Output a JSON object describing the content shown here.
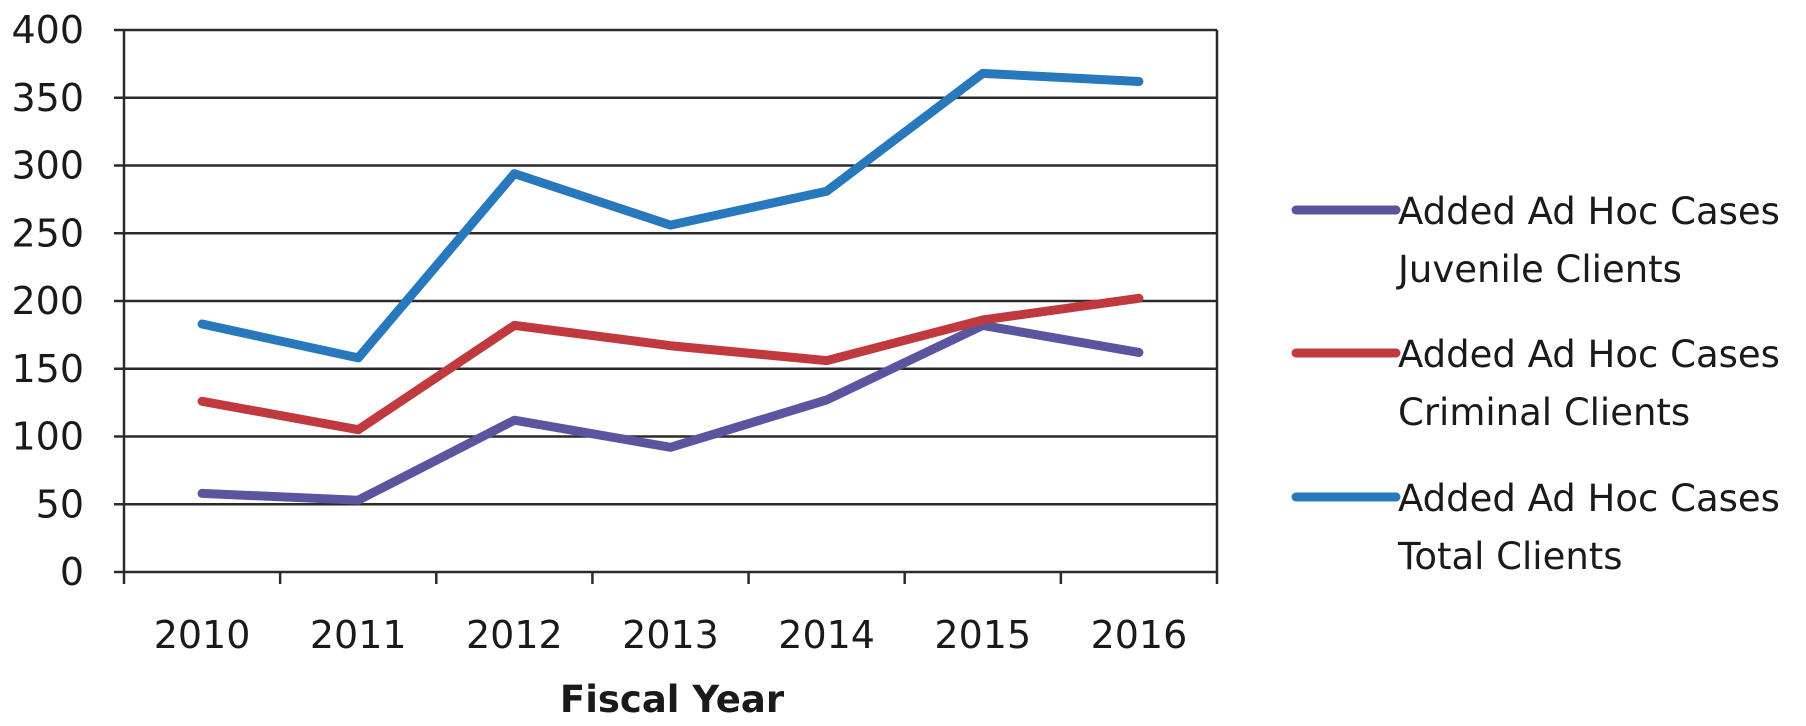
{
  "chart_data": {
    "type": "line",
    "title": "",
    "xlabel": "Fiscal Year",
    "ylabel": "",
    "categories": [
      "2010",
      "2011",
      "2012",
      "2013",
      "2014",
      "2015",
      "2016"
    ],
    "ylim": [
      0,
      400
    ],
    "yticks": [
      0,
      50,
      100,
      150,
      200,
      250,
      300,
      350,
      400
    ],
    "grid": true,
    "legend_position": "right",
    "series": [
      {
        "name": "Added Ad Hoc Cases Juvenile Clients",
        "label_lines": [
          "Added Ad Hoc Cases",
          "Juvenile Clients"
        ],
        "color": "#5B55A0",
        "values": [
          58,
          53,
          112,
          92,
          127,
          182,
          162
        ]
      },
      {
        "name": "Added Ad Hoc Cases Criminal Clients",
        "label_lines": [
          "Added Ad Hoc Cases",
          "Criminal Clients"
        ],
        "color": "#C0393E",
        "values": [
          126,
          105,
          182,
          167,
          156,
          186,
          202
        ]
      },
      {
        "name": "Added Ad Hoc Cases Total Clients",
        "label_lines": [
          "Added Ad Hoc Cases",
          "Total Clients"
        ],
        "color": "#2878BD",
        "values": [
          183,
          158,
          294,
          256,
          281,
          368,
          362
        ]
      }
    ]
  }
}
